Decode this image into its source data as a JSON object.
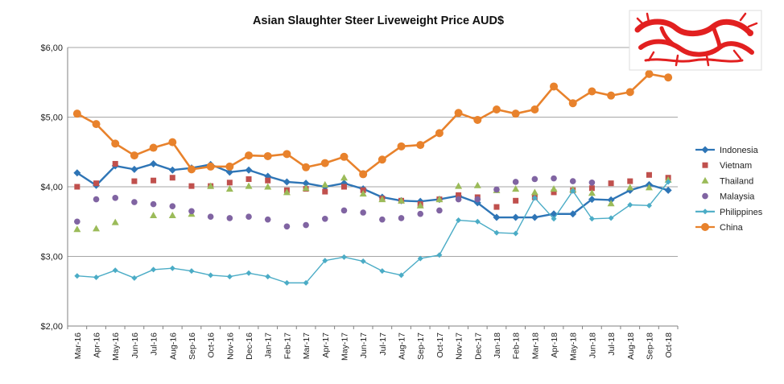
{
  "chart_data": {
    "type": "line",
    "title": "Asian Slaughter Steer Liveweight Price AUD$",
    "xlabel": "",
    "ylabel": "",
    "ylim": [
      2,
      6
    ],
    "yticks": [
      2,
      3,
      4,
      5,
      6
    ],
    "ytick_labels": [
      "$2,00",
      "$3,00",
      "$4,00",
      "$5,00",
      "$6,00"
    ],
    "grid": "horizontal",
    "legend_position": "right",
    "logo": "red-chinese-dragon",
    "categories": [
      "Mar-16",
      "Apr-16",
      "May-16",
      "Jun-16",
      "Jul-16",
      "Aug-16",
      "Sep-16",
      "Oct-16",
      "Nov-16",
      "Dec-16",
      "Jan-17",
      "Feb-17",
      "Mar-17",
      "Apr-17",
      "May-17",
      "Jun-17",
      "Jul-17",
      "Aug-17",
      "Sep-17",
      "Oct-17",
      "Nov-17",
      "Dec-17",
      "Jan-18",
      "Feb-18",
      "Mar-18",
      "Apr-18",
      "May-18",
      "Jun-18",
      "Jul-18",
      "Aug-18",
      "Sep-18",
      "Oct-18"
    ],
    "series": [
      {
        "name": "Indonesia",
        "color": "#2e75b6",
        "marker": "diamond",
        "line": true,
        "values": [
          4.2,
          4.02,
          4.3,
          4.25,
          4.33,
          4.24,
          4.27,
          4.32,
          4.21,
          4.24,
          4.15,
          4.07,
          4.05,
          4.0,
          4.05,
          3.97,
          3.85,
          3.8,
          3.79,
          3.82,
          3.87,
          3.77,
          3.56,
          3.56,
          3.56,
          3.61,
          3.61,
          3.82,
          3.81,
          3.95,
          4.03,
          3.95
        ]
      },
      {
        "name": "Vietnam",
        "color": "#c0504d",
        "marker": "square",
        "line": false,
        "values": [
          4.0,
          4.05,
          4.33,
          4.08,
          4.09,
          4.13,
          4.01,
          4.01,
          4.06,
          4.11,
          4.09,
          3.95,
          3.97,
          3.93,
          4.0,
          3.95,
          3.83,
          3.8,
          3.75,
          3.82,
          3.88,
          3.85,
          3.71,
          3.8,
          3.85,
          3.92,
          3.95,
          3.98,
          4.05,
          4.08,
          4.17,
          4.13
        ]
      },
      {
        "name": "Thailand",
        "color": "#9bbb59",
        "marker": "triangle",
        "line": false,
        "values": [
          3.39,
          3.4,
          3.49,
          null,
          3.59,
          3.59,
          3.61,
          4.01,
          3.97,
          4.01,
          4.0,
          3.92,
          3.98,
          4.03,
          4.13,
          3.9,
          3.82,
          3.8,
          3.73,
          3.82,
          4.01,
          4.02,
          3.95,
          3.97,
          3.92,
          3.97,
          3.96,
          3.91,
          3.76,
          3.99,
          3.99,
          4.1
        ]
      },
      {
        "name": "Malaysia",
        "color": "#8064a2",
        "marker": "circle",
        "line": false,
        "values": [
          3.5,
          3.82,
          3.84,
          3.78,
          3.75,
          3.72,
          3.65,
          3.57,
          3.55,
          3.57,
          3.53,
          3.43,
          3.45,
          3.54,
          3.66,
          3.63,
          3.53,
          3.55,
          3.61,
          3.66,
          3.82,
          3.82,
          3.96,
          4.07,
          4.11,
          4.12,
          4.08,
          4.06,
          null,
          null,
          null,
          null
        ]
      },
      {
        "name": "Philippines",
        "color": "#4bacc6",
        "marker": "diamond-small",
        "line": true,
        "values": [
          2.72,
          2.7,
          2.8,
          2.69,
          2.81,
          2.83,
          2.79,
          2.73,
          2.71,
          2.76,
          2.71,
          2.62,
          2.62,
          2.94,
          2.99,
          2.93,
          2.79,
          2.73,
          2.97,
          3.02,
          3.52,
          3.5,
          3.34,
          3.33,
          3.84,
          3.54,
          3.94,
          3.54,
          3.55,
          3.74,
          3.73,
          4.07
        ]
      },
      {
        "name": "China",
        "color": "#e8822c",
        "marker": "circle-large",
        "line": true,
        "values": [
          5.05,
          4.9,
          4.62,
          4.45,
          4.56,
          4.64,
          4.25,
          4.29,
          4.29,
          4.45,
          4.44,
          4.47,
          4.28,
          4.34,
          4.43,
          4.18,
          4.39,
          4.58,
          4.6,
          4.77,
          5.06,
          4.96,
          5.11,
          5.05,
          5.11,
          5.44,
          5.2,
          5.37,
          5.31,
          5.36,
          5.62,
          5.57
        ]
      }
    ]
  }
}
